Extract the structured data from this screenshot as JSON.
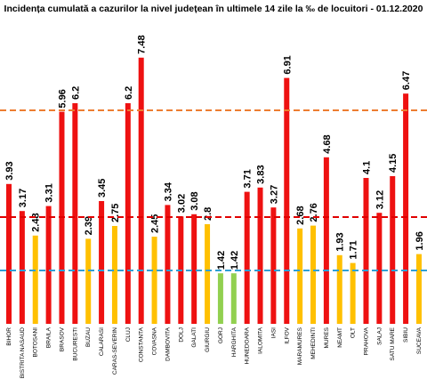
{
  "chart_data": {
    "type": "bar",
    "title": "Incidența cumulată a cazurilor la nivel județean în ultimele 14 zile la ‰ de locuitori - 01.12.2020",
    "categories": [
      "BIHOR",
      "BISTRITA NASAUD",
      "BOTOSANI",
      "BRAILA",
      "BRASOV",
      "BUCURESTI",
      "BUZAU",
      "CALARASI",
      "CARAS-SEVERIN",
      "CLUJ",
      "CONSTANTA",
      "COVASNA",
      "DAMBOVITA",
      "DOLJ",
      "GALATI",
      "GIURGIU",
      "GORJ",
      "HARGHITA",
      "HUNEDOARA",
      "IALOMITA",
      "IASI",
      "ILFOV",
      "MARAMURES",
      "MEHEDINTI",
      "MURES",
      "NEAMT",
      "OLT",
      "PRAHOVA",
      "SALAJ",
      "SATU MARE",
      "SIBIU",
      "SUCEAVA"
    ],
    "values": [
      3.93,
      3.17,
      2.48,
      3.31,
      5.96,
      6.2,
      2.39,
      3.45,
      2.75,
      6.2,
      7.48,
      2.45,
      3.34,
      3.02,
      3.08,
      2.8,
      1.42,
      1.42,
      3.71,
      3.83,
      3.27,
      6.91,
      2.68,
      2.76,
      4.68,
      1.93,
      1.71,
      4.1,
      3.12,
      4.15,
      6.47,
      1.96
    ],
    "colors": [
      "#ee1111",
      "#ee1111",
      "#ffc000",
      "#ee1111",
      "#ee1111",
      "#ee1111",
      "#ffc000",
      "#ee1111",
      "#ffc000",
      "#ee1111",
      "#ee1111",
      "#ffc000",
      "#ee1111",
      "#ee1111",
      "#ee1111",
      "#ffc000",
      "#92d050",
      "#92d050",
      "#ee1111",
      "#ee1111",
      "#ee1111",
      "#ee1111",
      "#ffc000",
      "#ffc000",
      "#ee1111",
      "#ffc000",
      "#ffc000",
      "#ee1111",
      "#ee1111",
      "#ee1111",
      "#ee1111",
      "#ffc000"
    ],
    "ylim": [
      0,
      7.5
    ],
    "thresholds": [
      {
        "value": 6,
        "color": "#ed7d31"
      },
      {
        "value": 3,
        "color": "#e00000"
      },
      {
        "value": 1.5,
        "color": "#2e9fd6"
      }
    ]
  }
}
